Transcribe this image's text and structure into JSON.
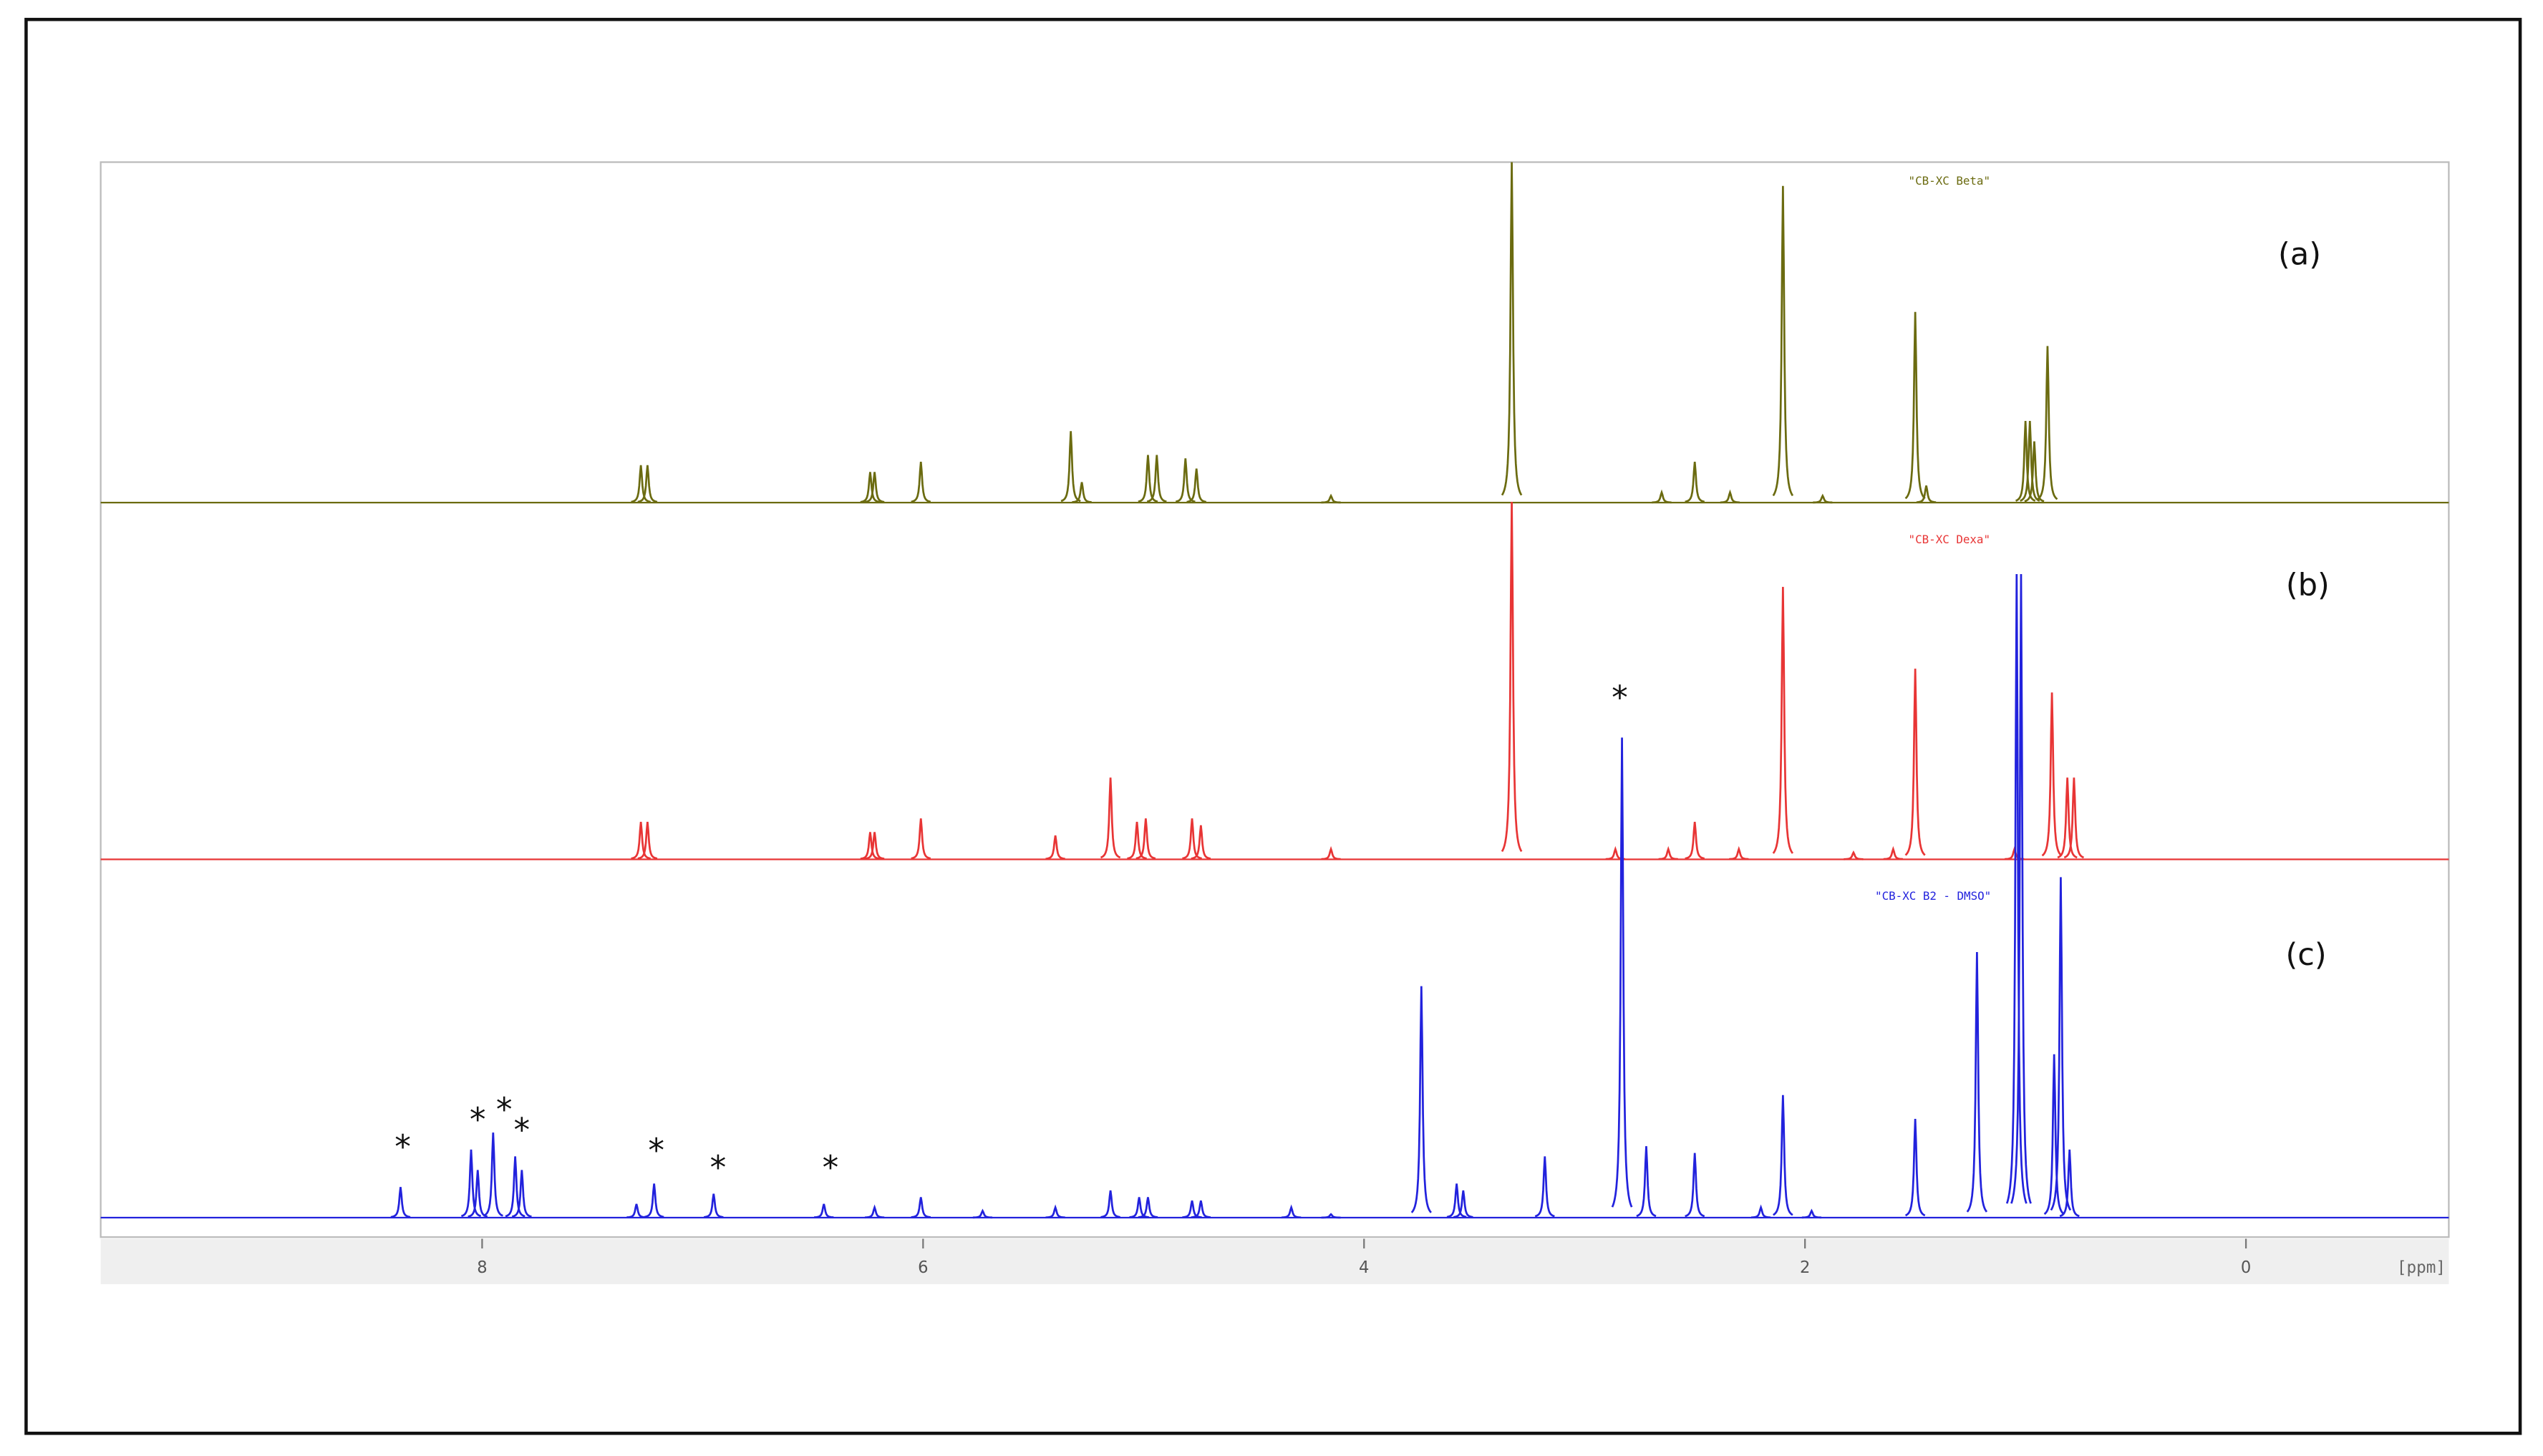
{
  "chart_data": {
    "type": "spectrum",
    "xlabel": "[ppm]",
    "xlim": [
      9.73,
      -0.92
    ],
    "xticks": [
      8,
      6,
      4,
      2,
      0
    ],
    "ylim": [
      0,
      100
    ],
    "panel_labels": [
      "(a)",
      "(b)",
      "(c)"
    ],
    "series": [
      {
        "name": "\"CB-XC Beta\"",
        "color": "#6b6b10",
        "x": [
          7.28,
          7.25,
          6.24,
          6.22,
          6.01,
          5.33,
          5.28,
          4.98,
          4.94,
          4.81,
          4.76,
          4.15,
          3.33,
          2.65,
          2.5,
          2.34,
          2.1,
          1.92,
          1.5,
          1.45,
          1.0,
          0.98,
          0.96,
          0.9
        ],
        "values": [
          11,
          11,
          9,
          9,
          12,
          21,
          6,
          14,
          14,
          13,
          10,
          2,
          100,
          3,
          12,
          3,
          93,
          2,
          56,
          5,
          24,
          24,
          18,
          46
        ]
      },
      {
        "name": "\"CB-XC Dexa\"",
        "color": "#e83535",
        "x": [
          7.28,
          7.25,
          6.24,
          6.22,
          6.01,
          5.4,
          5.15,
          5.03,
          4.99,
          4.78,
          4.74,
          4.15,
          3.33,
          2.86,
          2.62,
          2.5,
          2.3,
          2.1,
          1.78,
          1.6,
          1.5,
          1.05,
          0.88,
          0.81,
          0.78
        ],
        "values": [
          11,
          11,
          8,
          8,
          12,
          7,
          24,
          11,
          12,
          12,
          10,
          3,
          105,
          3,
          3,
          11,
          3,
          80,
          2,
          3,
          56,
          3,
          49,
          24,
          24
        ]
      },
      {
        "name": "\"CB-XC B2 - DMSO\"",
        "color": "#2222dd",
        "x": [
          8.37,
          8.05,
          8.02,
          7.95,
          7.85,
          7.82,
          7.3,
          7.22,
          6.95,
          6.45,
          6.22,
          6.01,
          5.73,
          5.4,
          5.15,
          5.02,
          4.98,
          4.78,
          4.74,
          4.33,
          4.15,
          3.74,
          3.58,
          3.55,
          3.18,
          2.83,
          2.72,
          2.5,
          2.2,
          2.1,
          1.97,
          1.5,
          1.22,
          1.04,
          1.02,
          0.87,
          0.84,
          0.8
        ],
        "values": [
          9,
          20,
          14,
          25,
          18,
          14,
          4,
          10,
          7,
          4,
          3,
          6,
          2,
          3,
          8,
          6,
          6,
          5,
          5,
          3,
          1,
          68,
          10,
          8,
          18,
          141,
          21,
          19,
          3,
          36,
          2,
          29,
          78,
          189,
          189,
          48,
          100,
          20
        ]
      }
    ],
    "annotations": [
      {
        "text": "*",
        "x": 8.36,
        "y": 23
      },
      {
        "text": "*",
        "x": 8.02,
        "y": 31
      },
      {
        "text": "*",
        "x": 7.9,
        "y": 34
      },
      {
        "text": "*",
        "x": 7.82,
        "y": 28
      },
      {
        "text": "*",
        "x": 7.21,
        "y": 22
      },
      {
        "text": "*",
        "x": 6.93,
        "y": 17
      },
      {
        "text": "*",
        "x": 6.42,
        "y": 17
      },
      {
        "text": "*",
        "x": 2.84,
        "y": 155
      }
    ]
  }
}
